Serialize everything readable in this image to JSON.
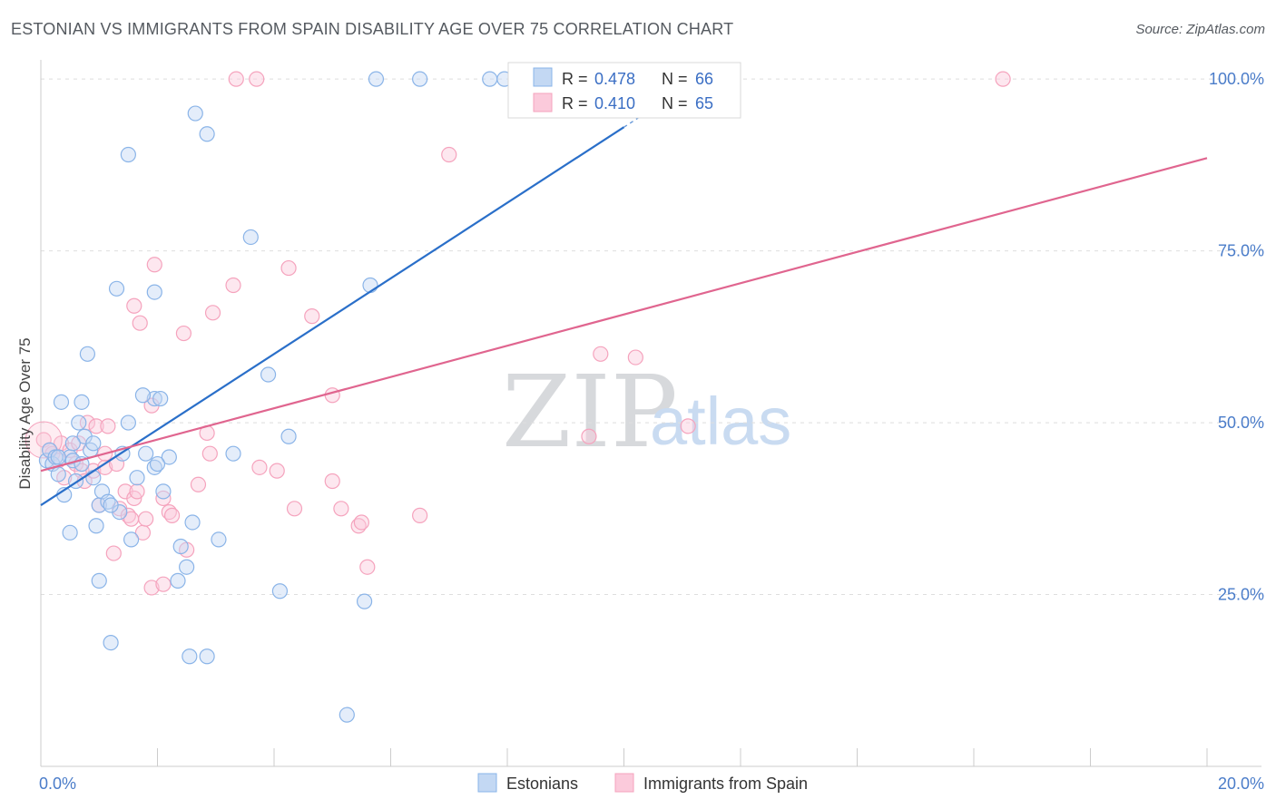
{
  "chart_data": {
    "type": "scatter",
    "title": "ESTONIAN VS IMMIGRANTS FROM SPAIN DISABILITY AGE OVER 75 CORRELATION CHART",
    "source": "Source: ZipAtlas.com",
    "xlabel": "",
    "ylabel": "Disability Age Over 75",
    "xlim": [
      0,
      20
    ],
    "ylim": [
      0,
      102
    ],
    "x_tick_labels": [
      "0.0%",
      "20.0%"
    ],
    "y_ticks": [
      25,
      50,
      75,
      100
    ],
    "y_tick_labels": [
      "25.0%",
      "50.0%",
      "75.0%",
      "100.0%"
    ],
    "watermark": {
      "main": "ZIP",
      "sub": "atlas"
    },
    "legend_box": [
      {
        "r_label": "R =",
        "r_value": "0.478",
        "n_label": "N =",
        "n_value": "66"
      },
      {
        "r_label": "R =",
        "r_value": "0.410",
        "n_label": "N =",
        "n_value": "65"
      }
    ],
    "series": [
      {
        "name": "Estonians",
        "color": "#8ab4e8",
        "line_color": "#2a6fc9",
        "trend": {
          "x0": 0,
          "y0": 38,
          "x1": 10.0,
          "y1": 93,
          "solid_until_x": 10.0
        },
        "points": [
          [
            0.1,
            44.5
          ],
          [
            0.15,
            46
          ],
          [
            0.2,
            44
          ],
          [
            0.25,
            45
          ],
          [
            0.3,
            42.5
          ],
          [
            0.35,
            53
          ],
          [
            0.4,
            39.5
          ],
          [
            0.5,
            34
          ],
          [
            0.5,
            45
          ],
          [
            0.55,
            44.5
          ],
          [
            0.6,
            41.5
          ],
          [
            0.65,
            50
          ],
          [
            0.7,
            53
          ],
          [
            0.75,
            48
          ],
          [
            0.8,
            60
          ],
          [
            0.85,
            46
          ],
          [
            0.9,
            42
          ],
          [
            0.95,
            35
          ],
          [
            1.0,
            38
          ],
          [
            1.05,
            40
          ],
          [
            1.0,
            27
          ],
          [
            1.15,
            38.5
          ],
          [
            1.2,
            18
          ],
          [
            1.3,
            69.5
          ],
          [
            1.4,
            45.5
          ],
          [
            1.5,
            89
          ],
          [
            1.5,
            50
          ],
          [
            1.55,
            33
          ],
          [
            1.65,
            42
          ],
          [
            1.8,
            45.5
          ],
          [
            1.95,
            43.5
          ],
          [
            1.95,
            53.5
          ],
          [
            1.95,
            69
          ],
          [
            2.05,
            53.5
          ],
          [
            2.1,
            40
          ],
          [
            2.2,
            45
          ],
          [
            2.35,
            27
          ],
          [
            2.4,
            32
          ],
          [
            2.5,
            29
          ],
          [
            2.55,
            16
          ],
          [
            2.6,
            35.5
          ],
          [
            2.65,
            95
          ],
          [
            2.85,
            16
          ],
          [
            2.85,
            92
          ],
          [
            3.05,
            33
          ],
          [
            3.3,
            45.5
          ],
          [
            3.6,
            77
          ],
          [
            3.9,
            57
          ],
          [
            4.1,
            25.5
          ],
          [
            4.25,
            48
          ],
          [
            5.25,
            7.5
          ],
          [
            5.55,
            24
          ],
          [
            5.65,
            70
          ],
          [
            5.75,
            100
          ],
          [
            6.5,
            100
          ],
          [
            7.7,
            100
          ],
          [
            7.95,
            100
          ],
          [
            8.15,
            100
          ],
          [
            0.3,
            45
          ],
          [
            0.55,
            47
          ],
          [
            1.35,
            37
          ],
          [
            0.9,
            47
          ],
          [
            1.2,
            38
          ],
          [
            1.75,
            54
          ],
          [
            0.7,
            44
          ],
          [
            2.0,
            44
          ]
        ]
      },
      {
        "name": "Immigrants from Spain",
        "color": "#f5a3bd",
        "line_color": "#e0658f",
        "trend": {
          "x0": 0,
          "y0": 43,
          "x1": 20,
          "y1": 88.5
        },
        "points": [
          [
            0.05,
            47.5
          ],
          [
            0.15,
            46
          ],
          [
            0.2,
            45.5
          ],
          [
            0.3,
            44.5
          ],
          [
            0.35,
            47
          ],
          [
            0.4,
            42
          ],
          [
            0.5,
            46
          ],
          [
            0.6,
            44
          ],
          [
            0.7,
            43
          ],
          [
            0.75,
            41.5
          ],
          [
            0.8,
            50
          ],
          [
            0.9,
            43
          ],
          [
            0.95,
            49.5
          ],
          [
            1.0,
            38
          ],
          [
            1.1,
            43.5
          ],
          [
            1.1,
            45.5
          ],
          [
            1.15,
            49.5
          ],
          [
            1.25,
            31
          ],
          [
            1.35,
            37.5
          ],
          [
            1.45,
            40
          ],
          [
            1.5,
            36.5
          ],
          [
            1.55,
            36
          ],
          [
            1.6,
            39
          ],
          [
            1.65,
            40
          ],
          [
            1.6,
            67
          ],
          [
            1.7,
            64.5
          ],
          [
            1.75,
            34
          ],
          [
            1.8,
            36
          ],
          [
            1.9,
            52.5
          ],
          [
            1.9,
            26
          ],
          [
            1.95,
            73
          ],
          [
            2.1,
            26.5
          ],
          [
            2.1,
            39
          ],
          [
            2.2,
            37
          ],
          [
            2.25,
            36.5
          ],
          [
            2.45,
            63
          ],
          [
            2.5,
            31.5
          ],
          [
            2.7,
            41
          ],
          [
            2.85,
            48.5
          ],
          [
            2.9,
            45.5
          ],
          [
            2.95,
            66
          ],
          [
            3.3,
            70
          ],
          [
            3.75,
            43.5
          ],
          [
            4.05,
            43
          ],
          [
            4.25,
            72.5
          ],
          [
            4.35,
            37.5
          ],
          [
            4.65,
            65.5
          ],
          [
            5.0,
            54
          ],
          [
            5.0,
            41.5
          ],
          [
            5.15,
            37.5
          ],
          [
            5.45,
            35
          ],
          [
            5.5,
            35.5
          ],
          [
            5.6,
            29
          ],
          [
            6.5,
            36.5
          ],
          [
            7.0,
            89
          ],
          [
            9.4,
            48
          ],
          [
            9.6,
            60
          ],
          [
            10.2,
            59.5
          ],
          [
            11.1,
            49.5
          ],
          [
            3.7,
            100
          ],
          [
            3.35,
            100
          ],
          [
            16.5,
            100
          ],
          [
            8.25,
            100
          ],
          [
            0.65,
            47
          ],
          [
            1.3,
            44
          ]
        ]
      }
    ]
  },
  "page": {
    "title": "ESTONIAN VS IMMIGRANTS FROM SPAIN DISABILITY AGE OVER 75 CORRELATION CHART",
    "source": "Source: ZipAtlas.com"
  }
}
